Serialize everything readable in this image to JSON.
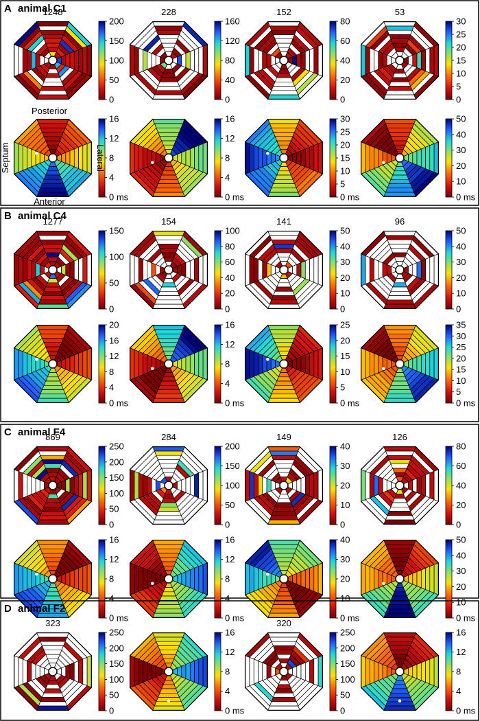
{
  "figure": {
    "orientation_labels": {
      "posterior": "Posterior",
      "septum": "Septum",
      "lateral": "Lateral",
      "anterior": "Anterior"
    },
    "panels": [
      {
        "letter": "A",
        "title": "animal C1",
        "counts": [
          "1248",
          "228",
          "152",
          "53"
        ],
        "count_scales": [
          [
            "0",
            "50",
            "100",
            "150",
            "200"
          ],
          [
            "0",
            "40",
            "80",
            "120",
            "160"
          ],
          [
            "0",
            "20",
            "40",
            "60",
            "80"
          ],
          [
            "0",
            "5",
            "10",
            "15",
            "20",
            "25",
            "30"
          ]
        ],
        "time_scales": [
          [
            "0 ms",
            "4",
            "8",
            "12",
            "16"
          ],
          [
            "0 ms",
            "4",
            "8",
            "12",
            "16"
          ],
          [
            "0 ms",
            "5",
            "10",
            "15",
            "20",
            "25",
            "30"
          ],
          [
            "0 ms",
            "10",
            "20",
            "30",
            "40",
            "50"
          ]
        ]
      },
      {
        "letter": "B",
        "title": "animal C4",
        "counts": [
          "1277",
          "154",
          "141",
          "96"
        ],
        "count_scales": [
          [
            "0",
            "50",
            "100",
            "150"
          ],
          [
            "0",
            "20",
            "40",
            "60",
            "80",
            "100"
          ],
          [
            "0",
            "10",
            "20",
            "30",
            "40",
            "50"
          ],
          [
            "0",
            "10",
            "20",
            "30",
            "40",
            "50"
          ]
        ],
        "time_scales": [
          [
            "0 ms",
            "4",
            "8",
            "12",
            "16",
            "20"
          ],
          [
            "0 ms",
            "4",
            "8",
            "12",
            "16"
          ],
          [
            "0 ms",
            "5",
            "10",
            "15",
            "20",
            "25"
          ],
          [
            "0 ms",
            "5",
            "10",
            "15",
            "20",
            "25",
            "30",
            "35"
          ]
        ]
      },
      {
        "letter": "C",
        "title": "animal F4",
        "counts": [
          "869",
          "284",
          "149",
          "126"
        ],
        "count_scales": [
          [
            "0",
            "50",
            "100",
            "150",
            "200",
            "250"
          ],
          [
            "0",
            "50",
            "100",
            "150",
            "200"
          ],
          [
            "0",
            "10",
            "20",
            "30",
            "40"
          ],
          [
            "0",
            "20",
            "40",
            "60",
            "80"
          ]
        ],
        "time_scales": [
          [
            "0 ms",
            "4",
            "8",
            "12",
            "16"
          ],
          [
            "0 ms",
            "4",
            "8",
            "12",
            "16"
          ],
          [
            "0 ms",
            "10",
            "20",
            "30",
            "40"
          ],
          [
            "0 ms",
            "10",
            "20",
            "30",
            "40",
            "50"
          ]
        ]
      },
      {
        "letter": "D",
        "title": "animal F2",
        "cols": [
          {
            "type": "count",
            "count": "323",
            "scale": [
              "0",
              "50",
              "100",
              "150",
              "200",
              "250"
            ]
          },
          {
            "type": "time",
            "scale": [
              "0 ms",
              "4",
              "8",
              "12",
              "16"
            ]
          },
          {
            "type": "count",
            "count": "320",
            "scale": [
              "0",
              "50",
              "100",
              "150",
              "200",
              "250"
            ]
          },
          {
            "type": "time",
            "scale": [
              "0 ms",
              "4",
              "8",
              "12",
              "16"
            ]
          }
        ]
      }
    ]
  },
  "colors": {
    "border": "#000000",
    "grid": "#000000",
    "blank": "#ffffff"
  }
}
